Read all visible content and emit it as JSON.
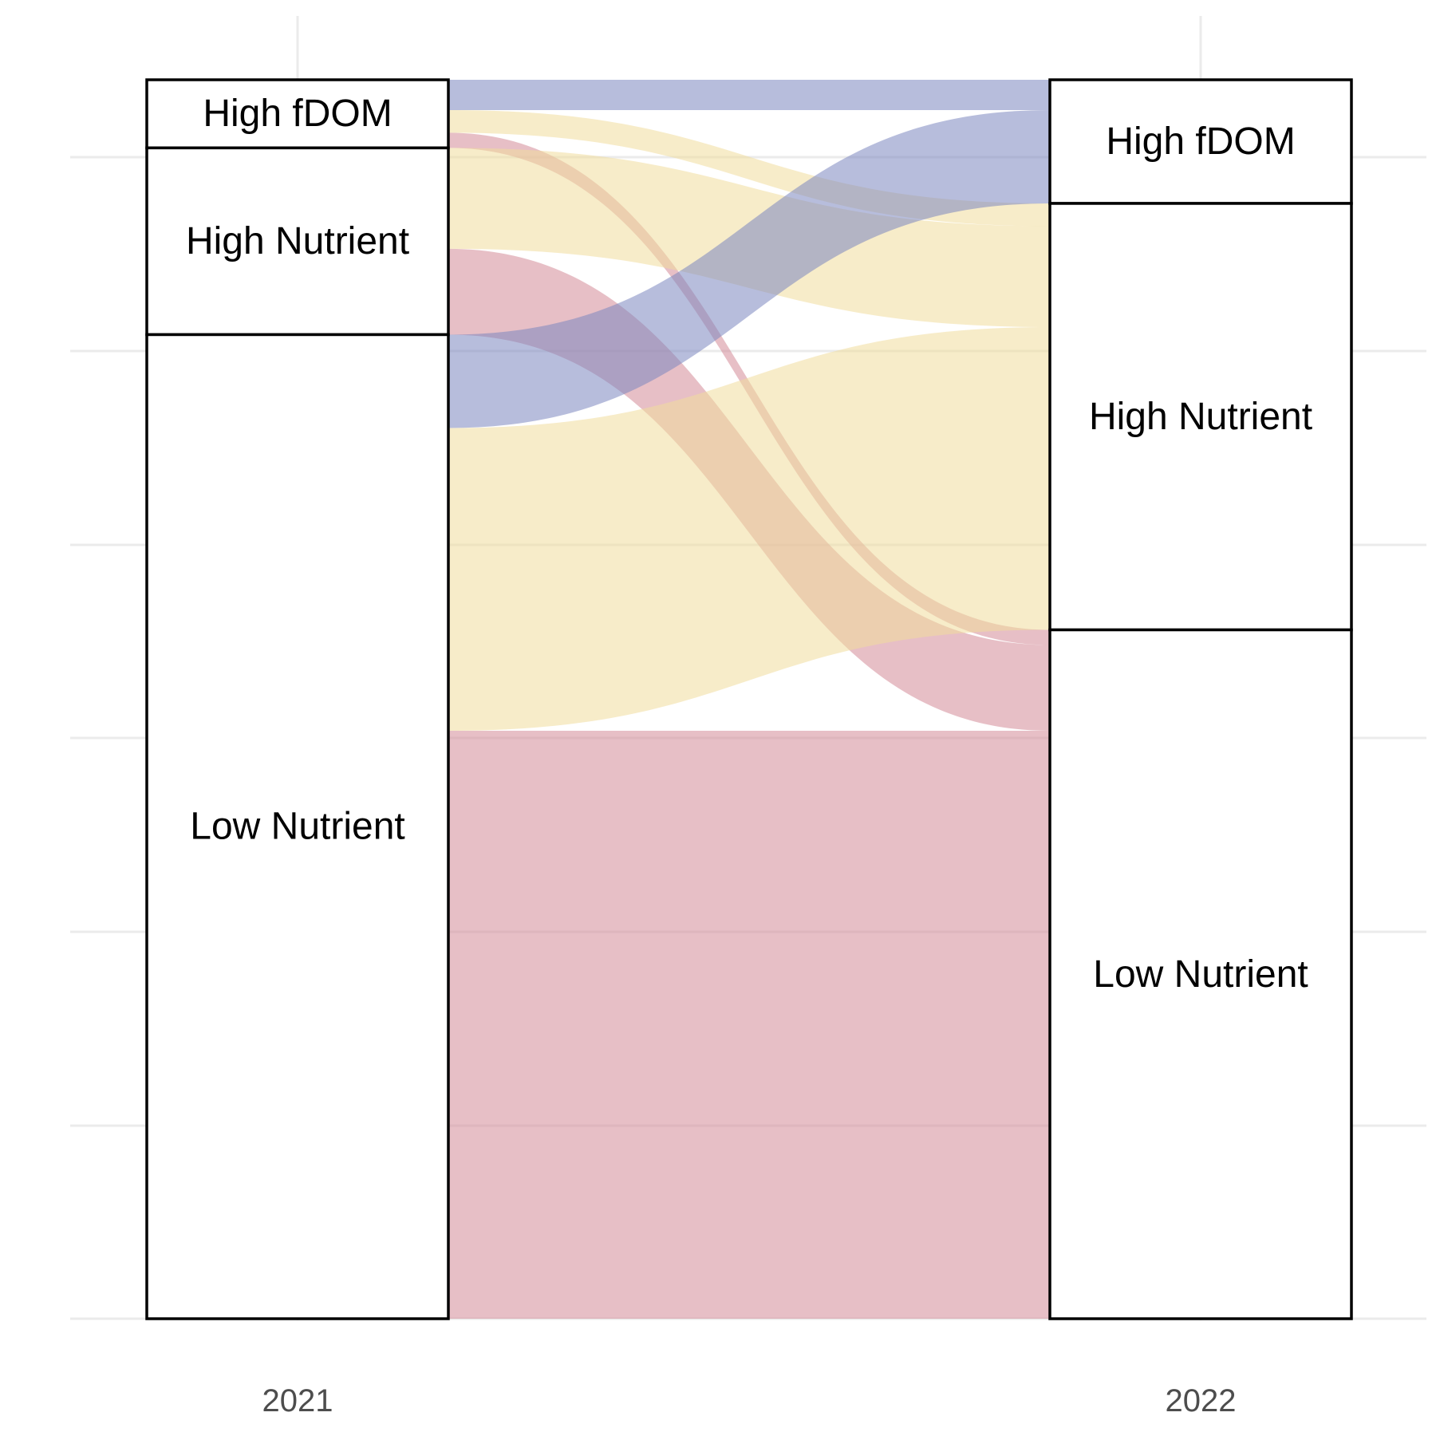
{
  "chart_data": {
    "type": "alluvial",
    "axes": [
      "2021",
      "2022"
    ],
    "strata": [
      "High fDOM",
      "High Nutrient",
      "Low Nutrient"
    ],
    "stratum_order_top_to_bottom": [
      "High fDOM",
      "High Nutrient",
      "Low Nutrient"
    ],
    "colors": {
      "High fDOM": "#7b86bf",
      "High Nutrient": "#f0dc9c",
      "Low Nutrient": "#d38a97"
    },
    "flow_opacity": 0.55,
    "flows": [
      {
        "from": "High fDOM",
        "to": "High fDOM",
        "value": 12
      },
      {
        "from": "High fDOM",
        "to": "High Nutrient",
        "value": 9
      },
      {
        "from": "High fDOM",
        "to": "Low Nutrient",
        "value": 6
      },
      {
        "from": "High Nutrient",
        "to": "High Nutrient",
        "value": 40
      },
      {
        "from": "High Nutrient",
        "to": "Low Nutrient",
        "value": 34
      },
      {
        "from": "Low Nutrient",
        "to": "High fDOM",
        "value": 37
      },
      {
        "from": "Low Nutrient",
        "to": "High Nutrient",
        "value": 120
      },
      {
        "from": "Low Nutrient",
        "to": "Low Nutrient",
        "value": 233
      }
    ],
    "xlabel": "",
    "ylabel": "",
    "grid": true,
    "legend": "none"
  }
}
